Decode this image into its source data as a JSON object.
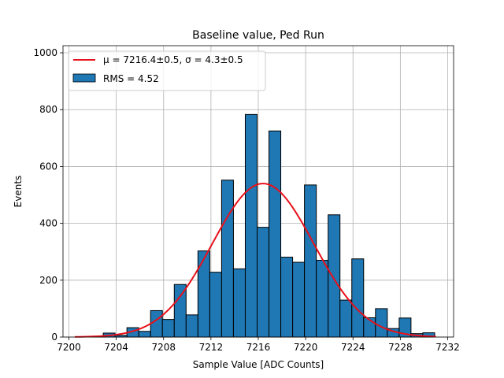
{
  "chart_data": {
    "type": "bar",
    "title": "Baseline value, Ped Run",
    "xlabel": "Sample Value [ADC Counts]",
    "ylabel": "Events",
    "xlim": [
      7199.5,
      7232.5
    ],
    "ylim": [
      0,
      1025
    ],
    "x_ticks": [
      7200,
      7204,
      7208,
      7212,
      7216,
      7220,
      7224,
      7228,
      7232
    ],
    "y_ticks": [
      0,
      200,
      400,
      600,
      800,
      1000
    ],
    "grid": true,
    "legend_position": "top-left",
    "bar_color": "#1f77b4",
    "fit_color": "#e8101a",
    "histogram": {
      "name": "RMS = 4.52",
      "bin_edges": [
        7201.9,
        7202.9,
        7203.9,
        7204.9,
        7205.9,
        7206.9,
        7207.9,
        7208.9,
        7209.9,
        7210.9,
        7211.9,
        7212.9,
        7213.9,
        7214.9,
        7215.9,
        7216.9,
        7217.9,
        7218.9,
        7219.9,
        7220.9,
        7221.9,
        7222.9,
        7223.9,
        7224.9,
        7225.9,
        7226.9,
        7227.9,
        7228.9,
        7229.9
      ],
      "counts": [
        2,
        14,
        6,
        33,
        20,
        93,
        62,
        185,
        78,
        303,
        228,
        552,
        240,
        783,
        386,
        725,
        281,
        263,
        535,
        270,
        430,
        130,
        275,
        68,
        100,
        30,
        67,
        12,
        15
      ]
    },
    "fit": {
      "name": "μ = 7216.4±0.5, σ = 4.3±0.5",
      "type": "gaussian",
      "mean": 7216.4,
      "sigma": 4.3,
      "amplitude": 540,
      "x_range": [
        7200.5,
        7231.0
      ]
    }
  }
}
